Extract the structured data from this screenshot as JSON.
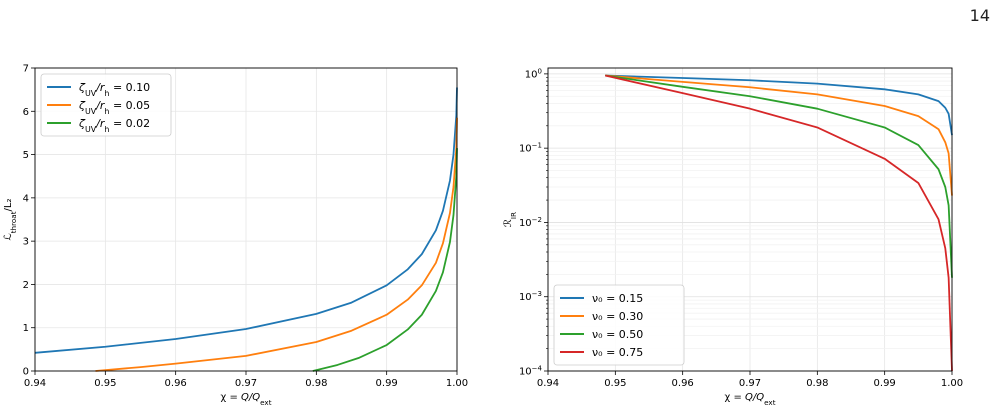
{
  "page": {
    "number": "14"
  },
  "chart_data": [
    {
      "type": "line",
      "xlabel": "χ = Q/Q_ext",
      "ylabel": "ℒ_throat/L₂",
      "xlim": [
        0.94,
        1.0
      ],
      "ylim": [
        0,
        7
      ],
      "xscale": "linear",
      "yscale": "linear",
      "grid": true,
      "legend_position": "top-left",
      "x_ticks": [
        0.94,
        0.95,
        0.96,
        0.97,
        0.98,
        0.99,
        1.0
      ],
      "x_tick_labels": [
        "0.94",
        "0.95",
        "0.96",
        "0.97",
        "0.98",
        "0.99",
        "1.00"
      ],
      "y_ticks": [
        0,
        1,
        2,
        3,
        4,
        5,
        6,
        7
      ],
      "y_tick_labels": [
        "0",
        "1",
        "2",
        "3",
        "4",
        "5",
        "6",
        "7"
      ],
      "series": [
        {
          "name": "ζ_UV/r_h = 0.10",
          "color": "#1f77b4",
          "x": [
            0.94,
            0.95,
            0.96,
            0.97,
            0.98,
            0.985,
            0.99,
            0.993,
            0.995,
            0.997,
            0.998,
            0.999,
            0.9995,
            0.9999,
            1.0
          ],
          "y": [
            0.42,
            0.56,
            0.74,
            0.97,
            1.32,
            1.58,
            1.98,
            2.35,
            2.7,
            3.25,
            3.7,
            4.4,
            5.0,
            5.9,
            6.55
          ]
        },
        {
          "name": "ζ_UV/r_h = 0.05",
          "color": "#ff7f0e",
          "x": [
            0.9486,
            0.955,
            0.96,
            0.97,
            0.98,
            0.985,
            0.99,
            0.993,
            0.995,
            0.997,
            0.998,
            0.999,
            0.9995,
            0.9999,
            1.0
          ],
          "y": [
            0.0,
            0.09,
            0.17,
            0.35,
            0.67,
            0.93,
            1.3,
            1.65,
            1.98,
            2.5,
            2.95,
            3.65,
            4.25,
            5.15,
            5.85
          ]
        },
        {
          "name": "ζ_UV/r_h = 0.02",
          "color": "#2ca02c",
          "x": [
            0.9795,
            0.983,
            0.986,
            0.99,
            0.993,
            0.995,
            0.997,
            0.998,
            0.999,
            0.9995,
            0.9999,
            1.0
          ],
          "y": [
            0.0,
            0.14,
            0.3,
            0.6,
            0.96,
            1.3,
            1.85,
            2.28,
            2.98,
            3.6,
            4.5,
            5.15
          ]
        }
      ]
    },
    {
      "type": "line",
      "xlabel": "χ = Q/Q_ext",
      "ylabel": "ℛ_IR",
      "xlim": [
        0.94,
        1.0
      ],
      "ylim": [
        0.0001,
        1.2
      ],
      "xscale": "linear",
      "yscale": "log",
      "grid": true,
      "legend_position": "bottom-left",
      "x_ticks": [
        0.94,
        0.95,
        0.96,
        0.97,
        0.98,
        0.99,
        1.0
      ],
      "x_tick_labels": [
        "0.94",
        "0.95",
        "0.96",
        "0.97",
        "0.98",
        "0.99",
        "1.00"
      ],
      "y_ticks": [
        0.0001,
        0.001,
        0.01,
        0.1,
        1
      ],
      "y_tick_labels": [
        {
          "base": "10",
          "exp": "−4"
        },
        {
          "base": "10",
          "exp": "−3"
        },
        {
          "base": "10",
          "exp": "−2"
        },
        {
          "base": "10",
          "exp": "−1"
        },
        {
          "base": "10",
          "exp": "0"
        }
      ],
      "series": [
        {
          "name": "ν₀ = 0.15",
          "color": "#1f77b4",
          "x": [
            0.9485,
            0.96,
            0.97,
            0.98,
            0.99,
            0.995,
            0.998,
            0.999,
            0.9995,
            1.0
          ],
          "y": [
            0.95,
            0.88,
            0.82,
            0.74,
            0.62,
            0.53,
            0.43,
            0.35,
            0.29,
            0.15
          ]
        },
        {
          "name": "ν₀ = 0.30",
          "color": "#ff7f0e",
          "x": [
            0.9485,
            0.96,
            0.97,
            0.98,
            0.99,
            0.995,
            0.998,
            0.999,
            0.9995,
            1.0
          ],
          "y": [
            0.95,
            0.78,
            0.66,
            0.53,
            0.37,
            0.27,
            0.18,
            0.12,
            0.085,
            0.023
          ]
        },
        {
          "name": "ν₀ = 0.50",
          "color": "#2ca02c",
          "x": [
            0.9485,
            0.96,
            0.97,
            0.98,
            0.99,
            0.995,
            0.998,
            0.999,
            0.9995,
            1.0
          ],
          "y": [
            0.95,
            0.67,
            0.5,
            0.34,
            0.19,
            0.11,
            0.052,
            0.03,
            0.017,
            0.0018
          ]
        },
        {
          "name": "ν₀ = 0.75",
          "color": "#d62728",
          "x": [
            0.9485,
            0.96,
            0.97,
            0.98,
            0.99,
            0.995,
            0.998,
            0.999,
            0.9995,
            1.0
          ],
          "y": [
            0.95,
            0.55,
            0.34,
            0.19,
            0.072,
            0.034,
            0.011,
            0.0045,
            0.0018,
            0.0001
          ]
        }
      ]
    }
  ]
}
